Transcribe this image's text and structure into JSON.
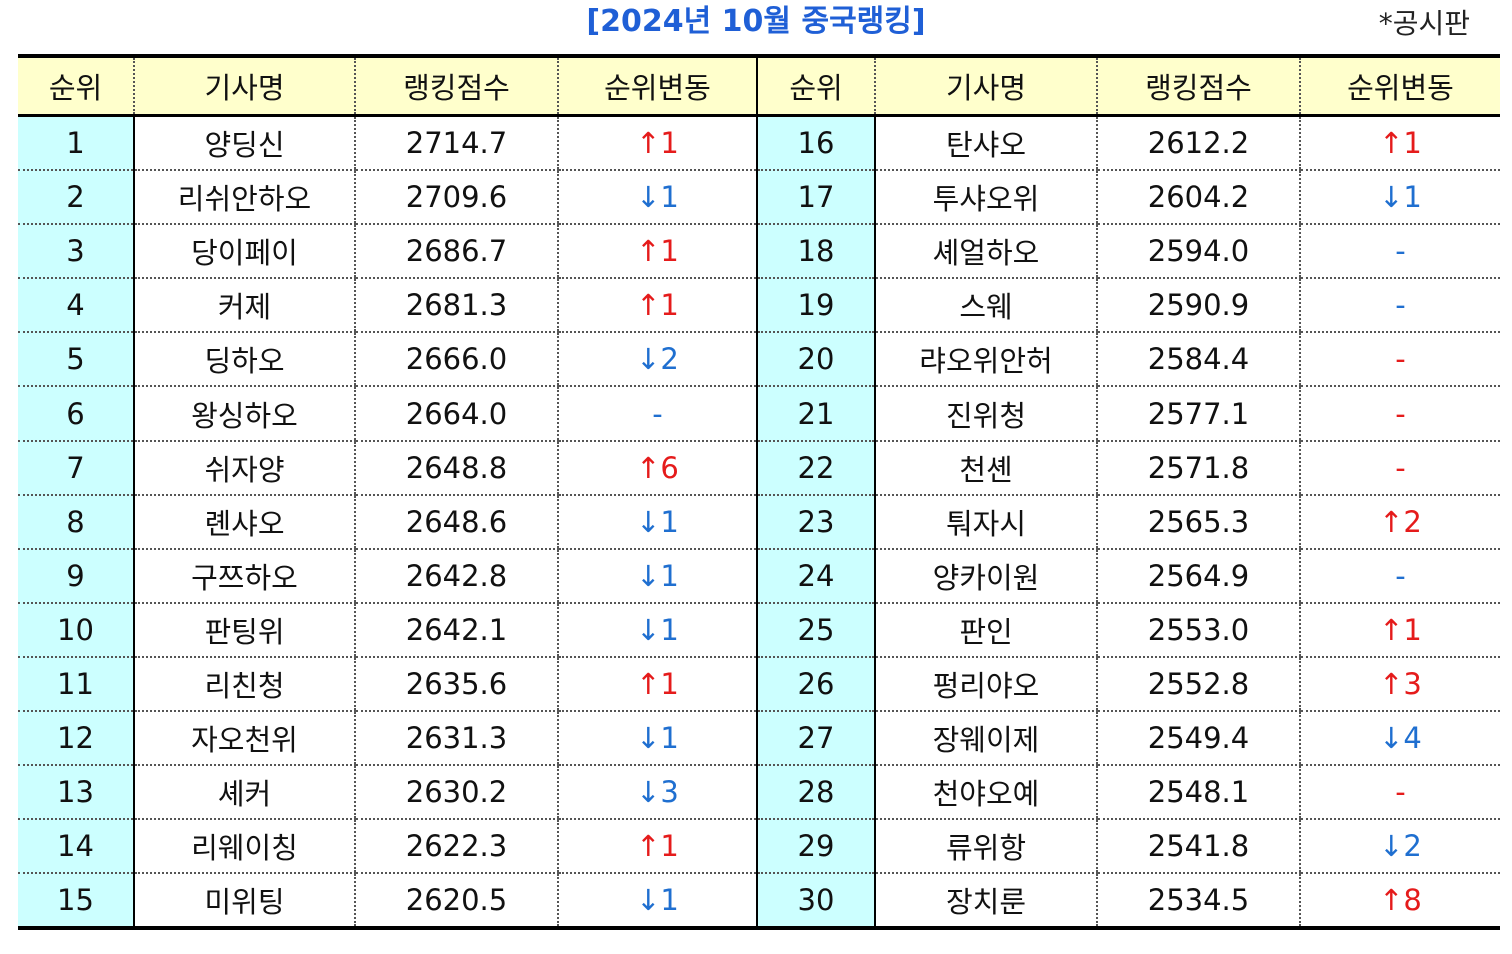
{
  "title": "[2024년 10월 중국랭킹]",
  "note": "*공시판",
  "headers": [
    "순위",
    "기사명",
    "랭킹점수",
    "순위변동",
    "순위",
    "기사명",
    "랭킹점수",
    "순위변동"
  ],
  "colors": {
    "up": "#e51b1b",
    "down": "#1f6fd0",
    "header_bg": "#ffffcc",
    "rank_bg": "#ccffff",
    "title": "#1f5fd6"
  },
  "rows": [
    {
      "left": {
        "rank": "1",
        "name": "양딩신",
        "score": "2714.7",
        "change": "↑1",
        "dir": "up"
      },
      "right": {
        "rank": "16",
        "name": "탄샤오",
        "score": "2612.2",
        "change": "↑1",
        "dir": "up"
      }
    },
    {
      "left": {
        "rank": "2",
        "name": "리쉬안하오",
        "score": "2709.6",
        "change": "↓1",
        "dir": "down"
      },
      "right": {
        "rank": "17",
        "name": "투샤오위",
        "score": "2604.2",
        "change": "↓1",
        "dir": "down"
      }
    },
    {
      "left": {
        "rank": "3",
        "name": "당이페이",
        "score": "2686.7",
        "change": "↑1",
        "dir": "up"
      },
      "right": {
        "rank": "18",
        "name": "셰얼하오",
        "score": "2594.0",
        "change": "-",
        "dir": "same-blue"
      }
    },
    {
      "left": {
        "rank": "4",
        "name": "커제",
        "score": "2681.3",
        "change": "↑1",
        "dir": "up"
      },
      "right": {
        "rank": "19",
        "name": "스웨",
        "score": "2590.9",
        "change": "-",
        "dir": "same-blue"
      }
    },
    {
      "left": {
        "rank": "5",
        "name": "딩하오",
        "score": "2666.0",
        "change": "↓2",
        "dir": "down"
      },
      "right": {
        "rank": "20",
        "name": "랴오위안허",
        "score": "2584.4",
        "change": "-",
        "dir": "same-red"
      }
    },
    {
      "left": {
        "rank": "6",
        "name": "왕싱하오",
        "score": "2664.0",
        "change": "-",
        "dir": "same-blue"
      },
      "right": {
        "rank": "21",
        "name": "진위청",
        "score": "2577.1",
        "change": "-",
        "dir": "same-red"
      }
    },
    {
      "left": {
        "rank": "7",
        "name": "쉬자양",
        "score": "2648.8",
        "change": "↑6",
        "dir": "up"
      },
      "right": {
        "rank": "22",
        "name": "천셴",
        "score": "2571.8",
        "change": "-",
        "dir": "same-red"
      }
    },
    {
      "left": {
        "rank": "8",
        "name": "롄샤오",
        "score": "2648.6",
        "change": "↓1",
        "dir": "down"
      },
      "right": {
        "rank": "23",
        "name": "퉈자시",
        "score": "2565.3",
        "change": "↑2",
        "dir": "up"
      }
    },
    {
      "left": {
        "rank": "9",
        "name": "구쯔하오",
        "score": "2642.8",
        "change": "↓1",
        "dir": "down"
      },
      "right": {
        "rank": "24",
        "name": "양카이원",
        "score": "2564.9",
        "change": "-",
        "dir": "same-blue"
      }
    },
    {
      "left": {
        "rank": "10",
        "name": "판팅위",
        "score": "2642.1",
        "change": "↓1",
        "dir": "down"
      },
      "right": {
        "rank": "25",
        "name": "판인",
        "score": "2553.0",
        "change": "↑1",
        "dir": "up"
      }
    },
    {
      "left": {
        "rank": "11",
        "name": "리친청",
        "score": "2635.6",
        "change": "↑1",
        "dir": "up"
      },
      "right": {
        "rank": "26",
        "name": "펑리야오",
        "score": "2552.8",
        "change": "↑3",
        "dir": "up"
      }
    },
    {
      "left": {
        "rank": "12",
        "name": "자오천위",
        "score": "2631.3",
        "change": "↓1",
        "dir": "down"
      },
      "right": {
        "rank": "27",
        "name": "장웨이제",
        "score": "2549.4",
        "change": "↓4",
        "dir": "down"
      }
    },
    {
      "left": {
        "rank": "13",
        "name": "셰커",
        "score": "2630.2",
        "change": "↓3",
        "dir": "down"
      },
      "right": {
        "rank": "28",
        "name": "천야오예",
        "score": "2548.1",
        "change": "-",
        "dir": "same-red"
      }
    },
    {
      "left": {
        "rank": "14",
        "name": "리웨이칭",
        "score": "2622.3",
        "change": "↑1",
        "dir": "up"
      },
      "right": {
        "rank": "29",
        "name": "류위항",
        "score": "2541.8",
        "change": "↓2",
        "dir": "down"
      }
    },
    {
      "left": {
        "rank": "15",
        "name": "미위팅",
        "score": "2620.5",
        "change": "↓1",
        "dir": "down"
      },
      "right": {
        "rank": "30",
        "name": "장치룬",
        "score": "2534.5",
        "change": "↑8",
        "dir": "up"
      }
    }
  ]
}
